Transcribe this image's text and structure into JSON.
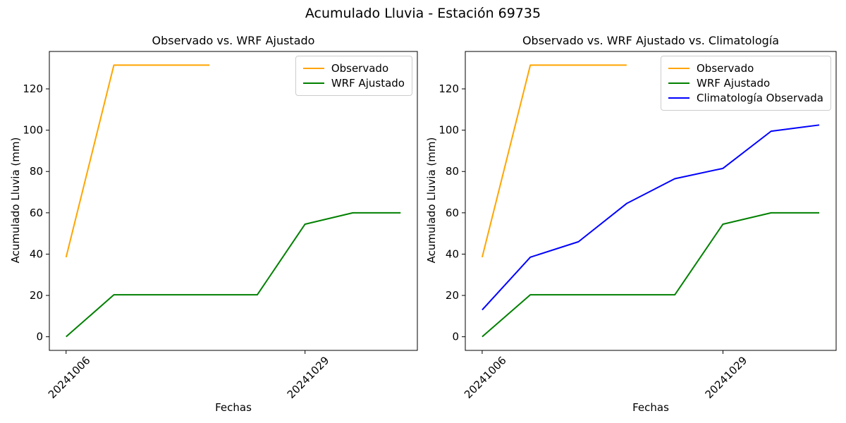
{
  "figure": {
    "title": "Acumulado Lluvia - Estación 69735",
    "background": "#FFFFFF"
  },
  "colors": {
    "observado": "#FFA500",
    "wrf_ajustado": "#008000",
    "climatologia_observada": "#0000FF",
    "spine": "#000000",
    "tick_text": "#000000",
    "legend_border": "#CCCCCC",
    "legend_background": "#FFFFFF"
  },
  "chart_data": [
    {
      "type": "line",
      "title": "Observado vs. WRF Ajustado",
      "xlabel": "Fechas",
      "ylabel": "Acumulado Lluvia (mm)",
      "n_points": 8,
      "ylim": [
        -6.6,
        138.1
      ],
      "yticks": [
        0,
        20,
        40,
        60,
        80,
        100,
        120
      ],
      "xticks": [
        {
          "index": 0,
          "label": "20241006"
        },
        {
          "index": 5,
          "label": "20241029"
        }
      ],
      "xtick_rotation": 45,
      "grid": false,
      "legend_position": "upper right",
      "series": [
        {
          "name": "Observado",
          "color": "#FFA500",
          "x": [
            0,
            1,
            2,
            3
          ],
          "values": [
            38.5,
            131.5,
            131.5,
            131.5
          ]
        },
        {
          "name": "WRF Ajustado",
          "color": "#008000",
          "x": [
            0,
            1,
            2,
            3,
            4,
            5,
            6,
            7
          ],
          "values": [
            0,
            20.3,
            20.3,
            20.3,
            20.3,
            54.5,
            60,
            60
          ]
        }
      ]
    },
    {
      "type": "line",
      "title": "Observado vs. WRF Ajustado vs. Climatología",
      "xlabel": "Fechas",
      "ylabel": "Acumulado Lluvia (mm)",
      "n_points": 8,
      "ylim": [
        -6.6,
        138.1
      ],
      "yticks": [
        0,
        20,
        40,
        60,
        80,
        100,
        120
      ],
      "xticks": [
        {
          "index": 0,
          "label": "20241006"
        },
        {
          "index": 5,
          "label": "20241029"
        }
      ],
      "xtick_rotation": 45,
      "grid": false,
      "legend_position": "upper right",
      "series": [
        {
          "name": "Observado",
          "color": "#FFA500",
          "x": [
            0,
            1,
            2,
            3
          ],
          "values": [
            38.5,
            131.5,
            131.5,
            131.5
          ]
        },
        {
          "name": "WRF Ajustado",
          "color": "#008000",
          "x": [
            0,
            1,
            2,
            3,
            4,
            5,
            6,
            7
          ],
          "values": [
            0,
            20.3,
            20.3,
            20.3,
            20.3,
            54.5,
            60,
            60
          ]
        },
        {
          "name": "Climatología Observada",
          "color": "#0000FF",
          "x": [
            0,
            1,
            2,
            3,
            4,
            5,
            6,
            7
          ],
          "values": [
            13,
            38.5,
            46,
            64.5,
            76.5,
            81.5,
            99.5,
            102.5
          ]
        }
      ]
    }
  ]
}
